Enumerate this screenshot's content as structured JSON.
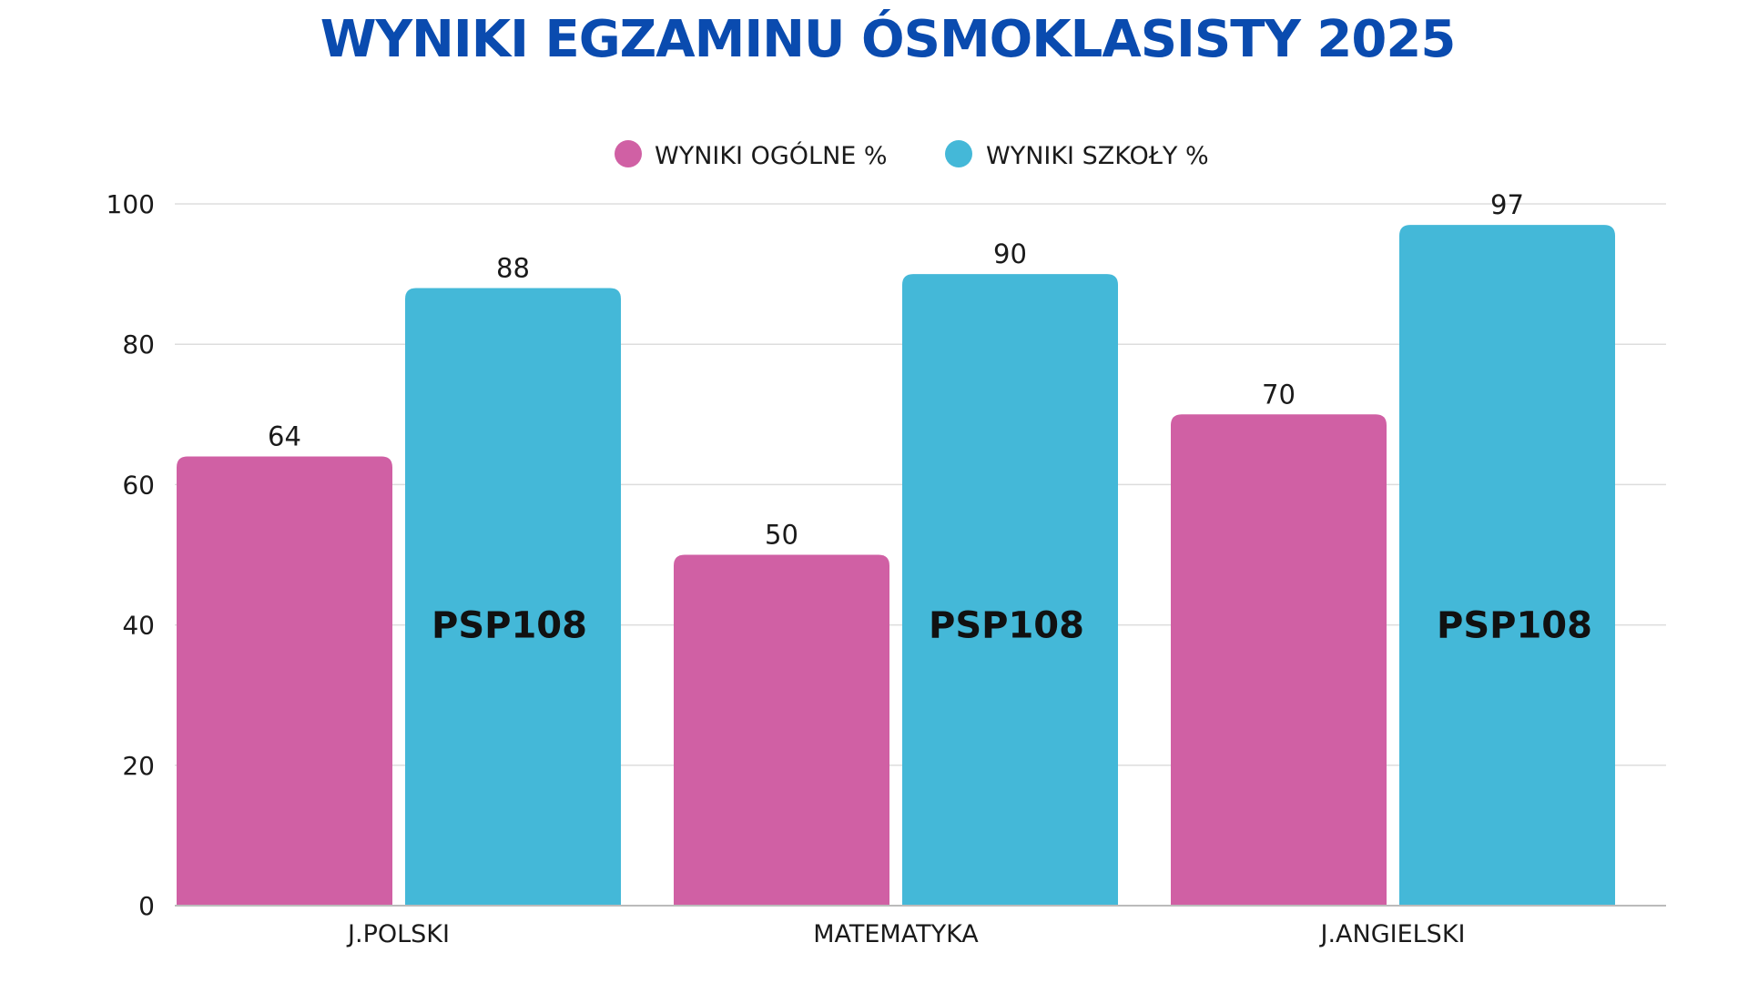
{
  "chart_data": {
    "type": "bar",
    "title": "WYNIKI EGZAMINU ÓSMOKLASISTY 2025",
    "categories": [
      "J.POLSKI",
      "MATEMATYKA",
      "J.ANGIELSKI"
    ],
    "series": [
      {
        "name": "WYNIKI OGÓLNE %",
        "values": [
          64,
          50,
          70
        ],
        "color": "#D060A4"
      },
      {
        "name": "WYNIKI SZKOŁY %",
        "values": [
          88,
          90,
          97
        ],
        "color": "#44B8D8",
        "annotation": "PSP108"
      }
    ],
    "yticks": [
      0,
      20,
      40,
      60,
      80,
      100
    ],
    "ylim": [
      0,
      100
    ],
    "xlabel": "",
    "ylabel": "",
    "grid": true,
    "legend": "top-center",
    "data_labels": true
  },
  "colors": {
    "title": "#0A4BAF",
    "text": "#1A1A1A",
    "grid": "#DDDDDD",
    "baseline": "#BBBBBB",
    "annotation": "#111111"
  }
}
